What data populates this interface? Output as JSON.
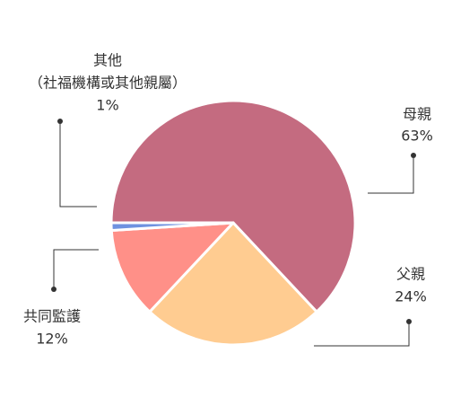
{
  "chart_data": {
    "type": "pie",
    "categories": [
      "母親",
      "父親",
      "共同監護",
      "其他"
    ],
    "values": [
      63,
      24,
      12,
      1
    ],
    "value_labels": [
      "63%",
      "24%",
      "12%",
      "1%"
    ],
    "colors": [
      "#c46b80",
      "#ffcc91",
      "#ff9088",
      "#6f92e0"
    ],
    "annotations": [
      {
        "text": "（社福機構或其他親屬）"
      }
    ]
  }
}
